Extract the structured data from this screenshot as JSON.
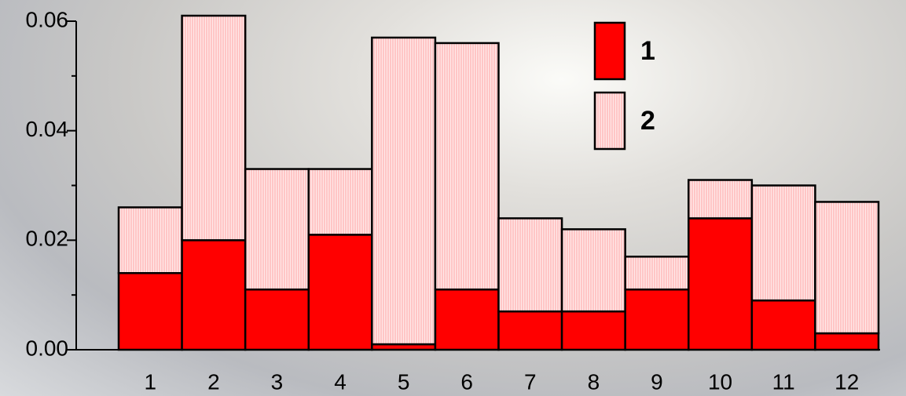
{
  "chart_data": {
    "type": "stacked_bar",
    "categories": [
      "1",
      "2",
      "3",
      "4",
      "5",
      "6",
      "7",
      "8",
      "9",
      "10",
      "11",
      "12"
    ],
    "series": [
      {
        "name": "1",
        "color": "#ff0000",
        "values": [
          0.014,
          0.02,
          0.011,
          0.021,
          0.001,
          0.011,
          0.007,
          0.007,
          0.011,
          0.024,
          0.009,
          0.003
        ]
      },
      {
        "name": "2",
        "color": "#ffc6c6",
        "values": [
          0.012,
          0.041,
          0.022,
          0.012,
          0.056,
          0.045,
          0.017,
          0.015,
          0.006,
          0.007,
          0.021,
          0.024
        ]
      }
    ],
    "ylim": [
      0,
      0.06
    ],
    "yticks": [
      {
        "value": 0,
        "label": "0.00"
      },
      0.02,
      0.04,
      0.06
    ],
    "yminor_ticks": [
      0.01,
      0.03,
      0.05
    ],
    "grid": false,
    "legend": "top-right"
  }
}
